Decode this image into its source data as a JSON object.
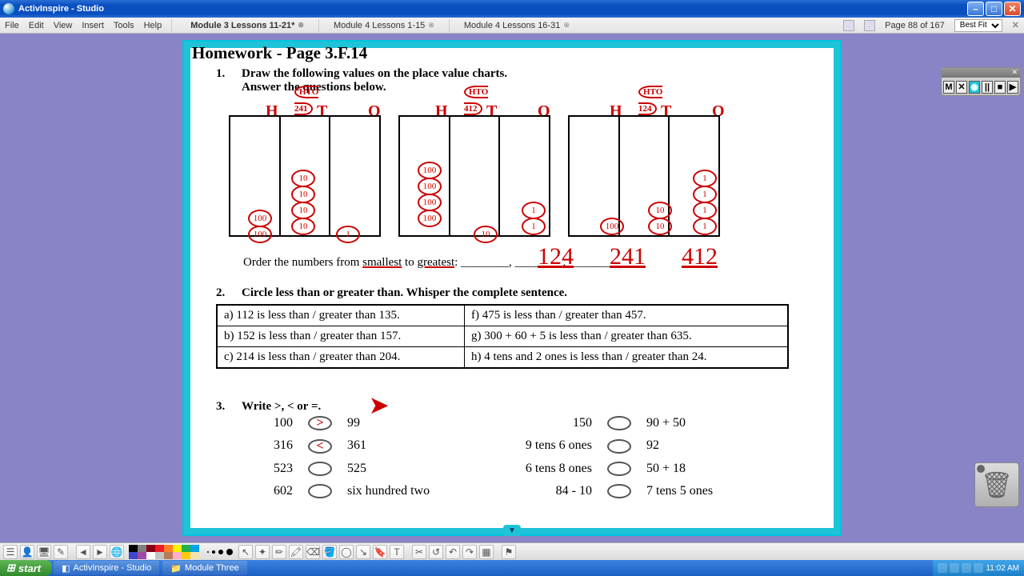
{
  "window": {
    "title": "ActivInspire - Studio"
  },
  "menus": [
    "File",
    "Edit",
    "View",
    "Insert",
    "Tools",
    "Help"
  ],
  "tabs": [
    {
      "label": "Module 3 Lessons 11-21*",
      "active": true
    },
    {
      "label": "Module 4 Lessons 1-15",
      "active": false
    },
    {
      "label": "Module 4 Lessons 16-31",
      "active": false
    }
  ],
  "pageIndicator": "Page 88 of 167",
  "zoom": "Best Fit",
  "worksheet": {
    "title": "Homework - Page 3.F.14",
    "q1": {
      "line1": "Draw the following values on the place value charts.",
      "line2": "Answer the questions below.",
      "orderText": "Order the numbers from ",
      "smallest": "smallest",
      "to": " to ",
      "greatest": "greatest",
      "hto_labels": [
        "H",
        "T",
        "O"
      ],
      "circled": [
        "241",
        "412",
        "124"
      ],
      "answers": [
        "124",
        "241",
        "412"
      ]
    },
    "q2": {
      "prompt": "Circle less than or greater than. Whisper the complete sentence.",
      "rows": [
        [
          "a) 112 is less than / greater than 135.",
          "f) 475 is less than / greater than 457."
        ],
        [
          "b) 152 is less than / greater than 157.",
          "g) 300 + 60 + 5 is less than / greater than 635."
        ],
        [
          "c) 214 is less than / greater than 204.",
          "h) 4 tens and 2 ones is less than / greater than 24."
        ]
      ]
    },
    "q3": {
      "prompt": "Write >, < or =.",
      "left": [
        {
          "a": "100",
          "b": "99",
          "mark": ">"
        },
        {
          "a": "316",
          "b": "361",
          "mark": "<"
        },
        {
          "a": "523",
          "b": "525",
          "mark": ""
        },
        {
          "a": "602",
          "b": "six hundred two",
          "mark": ""
        }
      ],
      "right": [
        {
          "a": "150",
          "b": "90 + 50"
        },
        {
          "a": "9 tens 6 ones",
          "b": "92"
        },
        {
          "a": "6 tens 8 ones",
          "b": "50 + 18"
        },
        {
          "a": "84 - 10",
          "b": "7 tens 5 ones"
        }
      ]
    }
  },
  "palette": [
    "#000000",
    "#7f7f7f",
    "#880015",
    "#ed1c24",
    "#ff7f27",
    "#fff200",
    "#22b14c",
    "#00a2e8",
    "#3f48cc",
    "#a349a4",
    "#ffffff",
    "#c3c3c3",
    "#b97a57",
    "#ffaec9",
    "#ffc90e",
    "#efe4b0"
  ],
  "taskbar": {
    "start": "start",
    "tasks": [
      "ActivInspire - Studio",
      "Module Three"
    ],
    "clock": "11:02 AM"
  },
  "floater": [
    "M",
    "✕",
    "◉",
    "||",
    "■",
    "▶"
  ]
}
